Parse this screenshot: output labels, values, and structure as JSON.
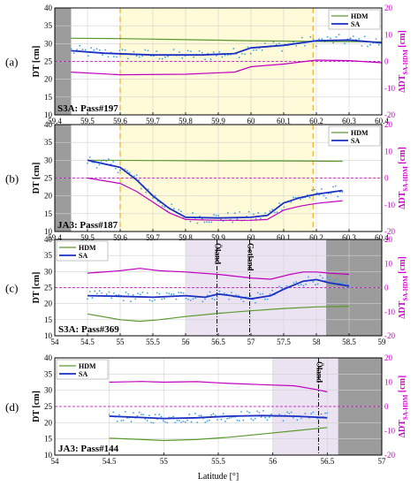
{
  "figure": {
    "xlabel": "Latitude [°]",
    "left_axis_label": "DT [cm]",
    "right_axis_label": "ΔDT",
    "right_axis_sub": "SA-HDM",
    "right_axis_unit": "[cm]"
  },
  "colors": {
    "hdm": "#5a9a2c",
    "sa": "#1a2fc4",
    "diff": "#c000c0",
    "dots": "#3aa0dd",
    "gray": "#9c9c9c",
    "yellow": "#fffbd8",
    "purple": "#ece3f2",
    "orange_line": "#f0b020"
  },
  "chart_data": [
    {
      "type": "line",
      "panel": "(a)",
      "pass_label": "S3A: Pass#197",
      "xlim": [
        59.4,
        60.4
      ],
      "xticks": [
        59.4,
        59.5,
        59.6,
        59.7,
        59.8,
        59.9,
        60,
        60.1,
        60.2,
        60.3,
        60.4
      ],
      "ylim": [
        10,
        40
      ],
      "yticks": [
        10,
        15,
        20,
        25,
        30,
        35,
        40
      ],
      "y2lim": [
        -20,
        20
      ],
      "y2ticks": [
        -20,
        -10,
        0,
        10,
        20
      ],
      "legend": [
        "HDM",
        "SA"
      ],
      "legend_position": "top-right",
      "gray_region": [
        59.4,
        59.45
      ],
      "yellow_region": [
        59.6,
        60.19
      ],
      "dashed_vlines": [
        59.6,
        60.19
      ],
      "series": [
        {
          "name": "HDM",
          "axis": "left",
          "x": [
            59.45,
            59.6,
            59.8,
            60.0,
            60.2,
            60.4
          ],
          "y": [
            31.5,
            31.4,
            31.1,
            30.8,
            30.6,
            30.5
          ]
        },
        {
          "name": "SA",
          "axis": "left",
          "x": [
            59.45,
            59.55,
            59.7,
            59.85,
            59.95,
            60.0,
            60.1,
            60.2,
            60.3,
            60.4
          ],
          "y": [
            28.0,
            27.3,
            26.8,
            26.8,
            27.2,
            28.8,
            29.5,
            30.8,
            31.0,
            30.2
          ]
        },
        {
          "name": "ΔDT",
          "axis": "right",
          "x": [
            59.45,
            59.6,
            59.8,
            59.95,
            60.0,
            60.1,
            60.2,
            60.3,
            60.4
          ],
          "y": [
            -4.0,
            -5.0,
            -4.8,
            -4.0,
            -2.0,
            -1.0,
            0.5,
            0.3,
            -0.5
          ]
        }
      ],
      "zero_line_right": 0
    },
    {
      "type": "line",
      "panel": "(b)",
      "pass_label": "JA3: Pass#187",
      "xlim": [
        59.4,
        60.4
      ],
      "xticks": [
        59.4,
        59.5,
        59.6,
        59.7,
        59.8,
        59.9,
        60,
        60.1,
        60.2,
        60.3,
        60.4
      ],
      "ylim": [
        10,
        40
      ],
      "yticks": [
        10,
        15,
        20,
        25,
        30,
        35,
        40
      ],
      "y2lim": [
        -20,
        20
      ],
      "y2ticks": [
        -20,
        -10,
        0,
        10,
        20
      ],
      "legend": [
        "HDM",
        "SA"
      ],
      "legend_position": "top-right",
      "gray_region": [
        59.4,
        59.45
      ],
      "yellow_region": [
        59.6,
        60.19
      ],
      "dashed_vlines": [
        59.6,
        60.19
      ],
      "series": [
        {
          "name": "HDM",
          "axis": "left",
          "x": [
            59.5,
            59.7,
            59.9,
            60.1,
            60.28
          ],
          "y": [
            30.0,
            29.9,
            29.8,
            29.8,
            29.7
          ]
        },
        {
          "name": "SA",
          "axis": "left",
          "x": [
            59.5,
            59.6,
            59.65,
            59.7,
            59.75,
            59.8,
            59.9,
            60.0,
            60.05,
            60.1,
            60.15,
            60.2,
            60.28
          ],
          "y": [
            30.0,
            28.0,
            24.5,
            20.0,
            16.5,
            14.0,
            13.8,
            14.0,
            14.5,
            18.0,
            19.5,
            20.5,
            21.5
          ]
        },
        {
          "name": "ΔDT",
          "axis": "right",
          "x": [
            59.5,
            59.6,
            59.65,
            59.7,
            59.75,
            59.8,
            59.9,
            60.0,
            60.05,
            60.1,
            60.15,
            60.2,
            60.28
          ],
          "y": [
            0.0,
            -2.0,
            -5.0,
            -9.0,
            -13.0,
            -15.5,
            -15.8,
            -15.8,
            -15.5,
            -12.0,
            -10.5,
            -9.5,
            -8.5
          ]
        }
      ],
      "zero_line_right": 0
    },
    {
      "type": "line",
      "panel": "(c)",
      "pass_label": "S3A: Pass#369",
      "xlim": [
        54,
        59
      ],
      "xticks": [
        54,
        54.5,
        55,
        55.5,
        56,
        56.5,
        57,
        57.5,
        58,
        58.5,
        59
      ],
      "ylim": [
        10,
        40
      ],
      "yticks": [
        10,
        15,
        20,
        25,
        30,
        35,
        40
      ],
      "y2lim": [
        -20,
        20
      ],
      "y2ticks": [
        -20,
        -10,
        0,
        10,
        20
      ],
      "legend": [
        "HDM",
        "SA"
      ],
      "legend_position": "top-left",
      "gray_region": [
        58.15,
        59
      ],
      "purple_region": [
        56.0,
        58.15
      ],
      "dashdot_vlines": [
        56.48,
        56.98
      ],
      "annotations": [
        {
          "text": "Öland",
          "x": 56.48
        },
        {
          "text": "Gotland",
          "x": 56.98
        }
      ],
      "series": [
        {
          "name": "HDM",
          "axis": "left",
          "x": [
            54.5,
            55.0,
            55.3,
            55.6,
            56.0,
            56.5,
            57.0,
            57.5,
            58.0,
            58.5
          ],
          "y": [
            16.8,
            15.0,
            14.5,
            15.0,
            16.0,
            17.0,
            17.8,
            18.5,
            19.0,
            19.2
          ]
        },
        {
          "name": "SA",
          "axis": "left",
          "x": [
            54.5,
            55.0,
            55.5,
            56.0,
            56.3,
            56.5,
            56.7,
            57.0,
            57.3,
            57.5,
            57.8,
            58.0,
            58.2,
            58.5
          ],
          "y": [
            22.5,
            22.3,
            22.0,
            22.5,
            22.0,
            23.0,
            22.5,
            21.5,
            22.5,
            24.5,
            27.0,
            27.5,
            26.5,
            25.5
          ]
        },
        {
          "name": "ΔDT",
          "axis": "right",
          "x": [
            54.5,
            55.0,
            55.3,
            55.6,
            56.0,
            56.5,
            57.0,
            57.3,
            57.6,
            57.8,
            58.0,
            58.2,
            58.5
          ],
          "y": [
            6.0,
            7.0,
            8.0,
            7.0,
            6.5,
            5.5,
            4.0,
            3.5,
            5.5,
            6.5,
            6.5,
            6.0,
            5.5
          ]
        }
      ],
      "zero_line_right": 0
    },
    {
      "type": "line",
      "panel": "(d)",
      "pass_label": "JA3: Pass#144",
      "xlim": [
        54,
        57
      ],
      "xticks": [
        54,
        54.5,
        55,
        55.5,
        56,
        56.5,
        57
      ],
      "ylim": [
        10,
        40
      ],
      "yticks": [
        10,
        15,
        20,
        25,
        30,
        35,
        40
      ],
      "y2lim": [
        -20,
        20
      ],
      "y2ticks": [
        -20,
        -10,
        0,
        10,
        20
      ],
      "legend": [
        "HDM",
        "SA"
      ],
      "legend_position": "top-left",
      "gray_region": [
        56.6,
        57
      ],
      "purple_region": [
        56.0,
        56.6
      ],
      "dashdot_vlines": [
        56.42
      ],
      "annotations": [
        {
          "text": "Öland",
          "x": 56.42
        }
      ],
      "series": [
        {
          "name": "HDM",
          "axis": "left",
          "x": [
            54.5,
            54.8,
            55.0,
            55.3,
            55.6,
            55.9,
            56.2,
            56.5
          ],
          "y": [
            15.2,
            14.8,
            14.5,
            14.8,
            15.5,
            16.5,
            17.5,
            18.5
          ]
        },
        {
          "name": "SA",
          "axis": "left",
          "x": [
            54.5,
            54.8,
            55.0,
            55.3,
            55.6,
            55.9,
            56.2,
            56.4,
            56.5
          ],
          "y": [
            22.0,
            21.6,
            21.3,
            21.5,
            22.0,
            22.2,
            22.0,
            21.7,
            21.5
          ]
        },
        {
          "name": "ΔDT",
          "axis": "right",
          "x": [
            54.5,
            54.8,
            55.0,
            55.3,
            55.6,
            55.9,
            56.2,
            56.4,
            56.5
          ],
          "y": [
            10.0,
            10.3,
            10.0,
            10.2,
            9.5,
            9.0,
            8.5,
            7.0,
            6.0
          ]
        }
      ],
      "zero_line_right": 0
    }
  ]
}
